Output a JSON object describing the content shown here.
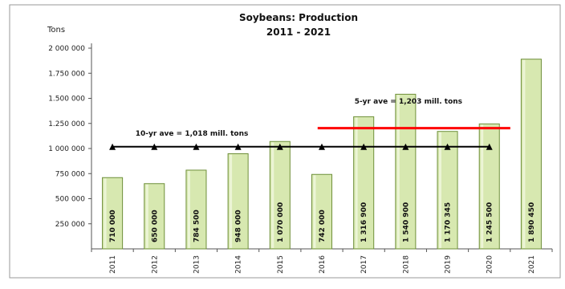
{
  "chart_data": {
    "type": "bar",
    "title": "Soybeans: Production",
    "subtitle": "2011 - 2021",
    "ylabel": "Tons",
    "xlabel": "",
    "ylim": [
      0,
      2000000
    ],
    "yticks": [
      {
        "v": 250000,
        "label": "250 000"
      },
      {
        "v": 500000,
        "label": "500 000"
      },
      {
        "v": 750000,
        "label": "750 000"
      },
      {
        "v": 1000000,
        "label": "1 000 000"
      },
      {
        "v": 1250000,
        "label": "1.250 000"
      },
      {
        "v": 1500000,
        "label": "1.500 000"
      },
      {
        "v": 1750000,
        "label": "1.750 000"
      },
      {
        "v": 2000000,
        "label": "2 000 000"
      }
    ],
    "categories": [
      "2011",
      "2012",
      "2013",
      "2014",
      "2015",
      "2016",
      "2017",
      "2018",
      "2019",
      "2020",
      "2021"
    ],
    "values": [
      710000,
      650000,
      784500,
      948000,
      1070000,
      742000,
      1316900,
      1540900,
      1170345,
      1245500,
      1890450
    ],
    "value_labels": [
      "710 000",
      "650 000",
      "784 500",
      "948 000",
      "1 070 000",
      "742 000",
      "1 316 900",
      "1 540 900",
      "1 170 345",
      "1 245 500",
      "1 890 450"
    ],
    "grid": false,
    "bar_color": "#d7e8b0",
    "bar_edge_color": "#6f8f3a",
    "averages": [
      {
        "label": "10-yr ave = 1,018 mill. tons",
        "value": 1018000,
        "from": "2011",
        "to": "2020",
        "color": "#000000",
        "marker": "triangle"
      },
      {
        "label": "5-yr ave = 1,203 mill. tons",
        "value": 1203000,
        "from": "2016",
        "to": "2020",
        "color": "#ff0000",
        "marker": "none"
      }
    ]
  }
}
